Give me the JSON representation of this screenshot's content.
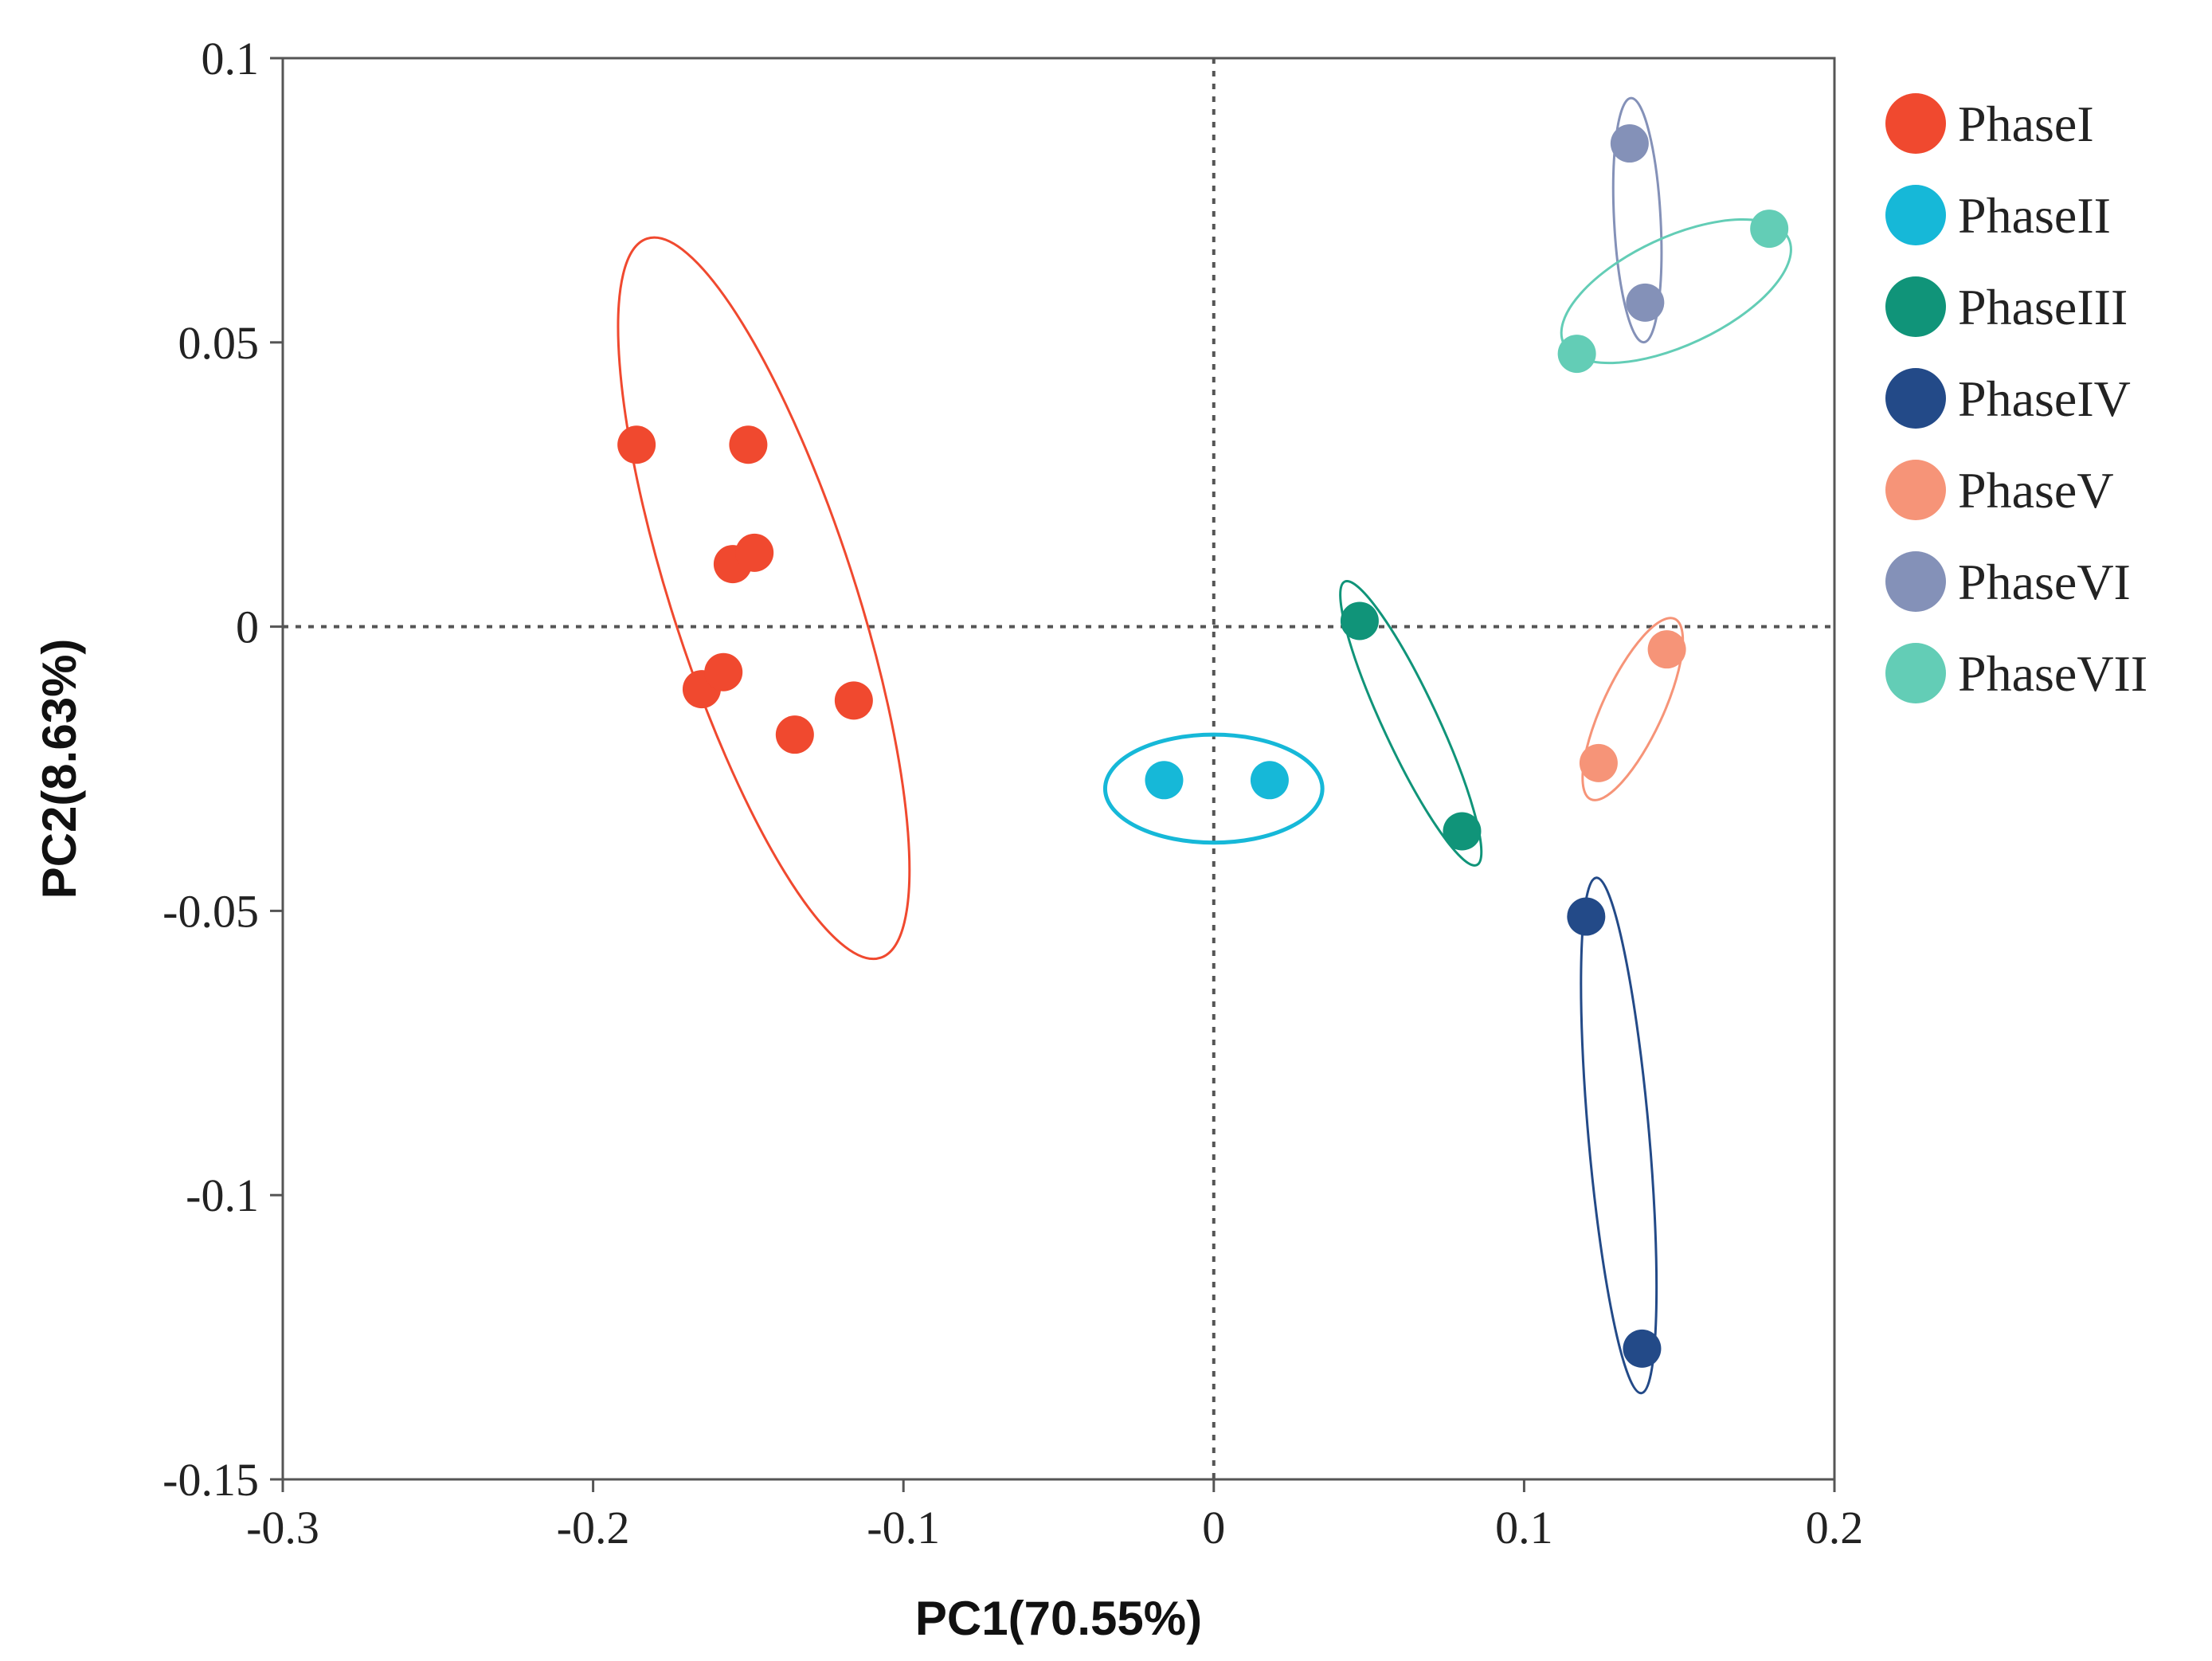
{
  "chart_data": {
    "type": "scatter",
    "xlabel": "PC1(70.55%)",
    "ylabel": "PC2(8.63%)",
    "xlim": [
      -0.3,
      0.2
    ],
    "ylim": [
      -0.15,
      0.1
    ],
    "xticks": [
      -0.3,
      -0.2,
      -0.1,
      0,
      0.1,
      0.2
    ],
    "yticks": [
      -0.15,
      -0.1,
      -0.05,
      0,
      0.05,
      0.1
    ],
    "xtick_labels": [
      "-0.3",
      "-0.2",
      "-0.1",
      "0",
      "0.1",
      "0.2"
    ],
    "ytick_labels": [
      "-0.15",
      "-0.1",
      "-0.05",
      "0",
      "0.05",
      "0.1"
    ],
    "zero_lines": true,
    "grid": false,
    "legend_position": "right",
    "series": [
      {
        "name": "PhaseI",
        "color": "#F0492F",
        "points": [
          [
            -0.186,
            0.032
          ],
          [
            -0.15,
            0.032
          ],
          [
            -0.155,
            0.011
          ],
          [
            -0.148,
            0.013
          ],
          [
            -0.165,
            -0.011
          ],
          [
            -0.158,
            -0.008
          ],
          [
            -0.135,
            -0.019
          ],
          [
            -0.116,
            -0.013
          ]
        ],
        "ellipse": {
          "cx": -0.145,
          "cy": 0.005,
          "rx": 0.0295,
          "ry": 0.0665,
          "angle": -18
        }
      },
      {
        "name": "PhaseII",
        "color": "#16B8D8",
        "points": [
          [
            -0.016,
            -0.027
          ],
          [
            0.018,
            -0.027
          ]
        ],
        "ellipse": {
          "cx": 0.0,
          "cy": -0.0285,
          "rx": 0.035,
          "ry": 0.0095,
          "angle": 0
        }
      },
      {
        "name": "PhaseIII",
        "color": "#109479",
        "points": [
          [
            0.047,
            0.001
          ],
          [
            0.08,
            -0.036
          ]
        ],
        "ellipse": {
          "cx": 0.0635,
          "cy": -0.017,
          "rx": 0.0088,
          "ry": 0.0275,
          "angle": -25
        }
      },
      {
        "name": "PhaseIV",
        "color": "#234A88",
        "points": [
          [
            0.12,
            -0.051
          ],
          [
            0.138,
            -0.127
          ]
        ],
        "ellipse": {
          "cx": 0.1305,
          "cy": -0.0895,
          "rx": 0.0098,
          "ry": 0.0455,
          "angle": -5
        }
      },
      {
        "name": "PhaseV",
        "color": "#F69478",
        "points": [
          [
            0.146,
            -0.004
          ],
          [
            0.124,
            -0.024
          ]
        ],
        "ellipse": {
          "cx": 0.135,
          "cy": -0.0145,
          "rx": 0.0097,
          "ry": 0.0175,
          "angle": 25
        }
      },
      {
        "name": "PhaseVI",
        "color": "#8491B8",
        "points": [
          [
            0.134,
            0.085
          ],
          [
            0.139,
            0.057
          ]
        ],
        "ellipse": {
          "cx": 0.1365,
          "cy": 0.0715,
          "rx": 0.0075,
          "ry": 0.0215,
          "angle": -3
        }
      },
      {
        "name": "PhaseVII",
        "color": "#63CDB6",
        "points": [
          [
            0.117,
            0.048
          ],
          [
            0.179,
            0.07
          ]
        ],
        "ellipse": {
          "cx": 0.149,
          "cy": 0.059,
          "rx": 0.04,
          "ry": 0.0095,
          "angle": -25
        }
      }
    ]
  }
}
